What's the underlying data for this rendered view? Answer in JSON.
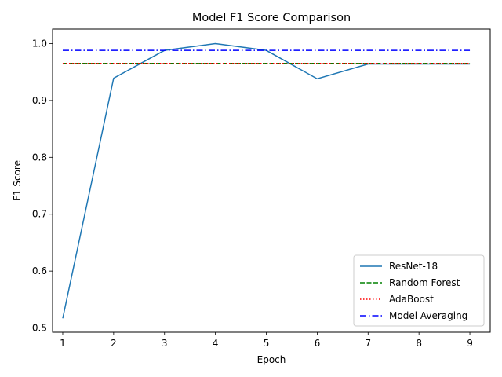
{
  "chart_data": {
    "type": "line",
    "title": "Model F1 Score Comparison",
    "xlabel": "Epoch",
    "ylabel": "F1 Score",
    "x": [
      1,
      2,
      3,
      4,
      5,
      6,
      7,
      8,
      9
    ],
    "xlim": [
      0.8,
      9.4
    ],
    "ylim": [
      0.4925,
      1.0255
    ],
    "xticks": [
      "1",
      "2",
      "3",
      "4",
      "5",
      "6",
      "7",
      "8",
      "9"
    ],
    "yticks": [
      "0.5",
      "0.6",
      "0.7",
      "0.8",
      "0.9",
      "1.0"
    ],
    "ytick_values": [
      0.5,
      0.6,
      0.7,
      0.8,
      0.9,
      1.0
    ],
    "grid": false,
    "legend_position": "lower-right",
    "series": [
      {
        "name": "ResNet-18",
        "style": "solid",
        "color": "#1f77b4",
        "values": [
          0.517,
          0.939,
          0.988,
          1.0,
          0.988,
          0.938,
          0.964,
          0.964,
          0.964
        ]
      },
      {
        "name": "Random Forest",
        "style": "dashed",
        "color": "#008000",
        "values": [
          0.965,
          0.965,
          0.965,
          0.965,
          0.965,
          0.965,
          0.965,
          0.965,
          0.965
        ]
      },
      {
        "name": "AdaBoost",
        "style": "dotted",
        "color": "#ff0000",
        "values": [
          0.965,
          0.965,
          0.965,
          0.965,
          0.965,
          0.965,
          0.965,
          0.965,
          0.965
        ]
      },
      {
        "name": "Model Averaging",
        "style": "dashdot",
        "color": "#0000ff",
        "values": [
          0.988,
          0.988,
          0.988,
          0.988,
          0.988,
          0.988,
          0.988,
          0.988,
          0.988
        ]
      }
    ]
  }
}
